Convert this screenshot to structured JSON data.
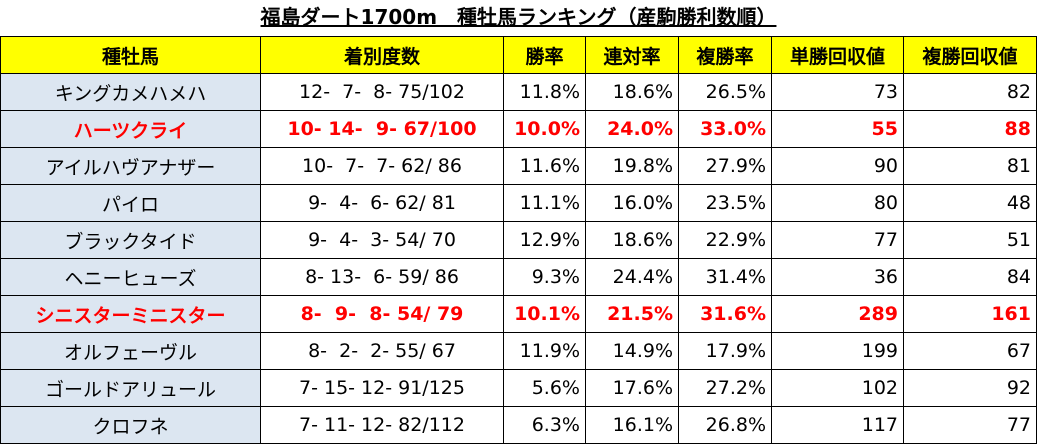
{
  "title": "福島ダート1700m　種牡馬ランキング（産駒勝利数順）",
  "table": {
    "header": [
      "種牡馬",
      "着別度数",
      "勝率",
      "連対率",
      "複勝率",
      "単勝回収値",
      "複勝回収値"
    ],
    "header_color": "#ffff00",
    "name_column_color": "#dce6f1",
    "highlight_color": "#ff0000",
    "rows": [
      {
        "cells": [
          "キングカメハメハ",
          "12-  7-  8- 75/102",
          "11.8%",
          "18.6%",
          "26.5%",
          "73",
          "82"
        ],
        "highlight": false
      },
      {
        "cells": [
          "ハーツクライ",
          "10- 14-  9- 67/100",
          "10.0%",
          "24.0%",
          "33.0%",
          "55",
          "88"
        ],
        "highlight": true
      },
      {
        "cells": [
          "アイルハヴアナザー",
          "10-  7-  7- 62/ 86",
          "11.6%",
          "19.8%",
          "27.9%",
          "90",
          "81"
        ],
        "highlight": false
      },
      {
        "cells": [
          "パイロ",
          "9-  4-  6- 62/ 81",
          "11.1%",
          "16.0%",
          "23.5%",
          "80",
          "48"
        ],
        "highlight": false
      },
      {
        "cells": [
          "ブラックタイド",
          "9-  4-  3- 54/ 70",
          "12.9%",
          "18.6%",
          "22.9%",
          "77",
          "51"
        ],
        "highlight": false
      },
      {
        "cells": [
          "ヘニーヒューズ",
          "8- 13-  6- 59/ 86",
          "9.3%",
          "24.4%",
          "31.4%",
          "36",
          "84"
        ],
        "highlight": false
      },
      {
        "cells": [
          "シニスターミニスター",
          "8-  9-  8- 54/ 79",
          "10.1%",
          "21.5%",
          "31.6%",
          "289",
          "161"
        ],
        "highlight": true
      },
      {
        "cells": [
          "オルフェーヴル",
          "8-  2-  2- 55/ 67",
          "11.9%",
          "14.9%",
          "17.9%",
          "199",
          "67"
        ],
        "highlight": false
      },
      {
        "cells": [
          "ゴールドアリュール",
          "7- 15- 12- 91/125",
          "5.6%",
          "17.6%",
          "27.2%",
          "102",
          "92"
        ],
        "highlight": false
      },
      {
        "cells": [
          "クロフネ",
          "7- 11- 12- 82/112",
          "6.3%",
          "16.1%",
          "26.8%",
          "117",
          "77"
        ],
        "highlight": false
      }
    ]
  }
}
